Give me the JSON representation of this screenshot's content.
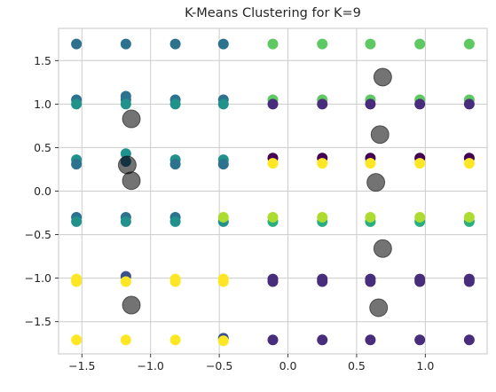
{
  "chart_data": {
    "type": "scatter",
    "title": "K-Means Clustering for K=9",
    "xlabel": "",
    "ylabel": "",
    "xlim": [
      -1.67,
      1.45
    ],
    "ylim": [
      -1.87,
      1.87
    ],
    "xticks": [
      -1.5,
      -1.0,
      -0.5,
      0.0,
      0.5,
      1.0
    ],
    "xtick_labels": [
      "−1.5",
      "−1.0",
      "−0.5",
      "0.0",
      "0.5",
      "1.0"
    ],
    "yticks": [
      -1.5,
      -1.0,
      -0.5,
      0.0,
      0.5,
      1.0,
      1.5
    ],
    "ytick_labels": [
      "−1.5",
      "−1.0",
      "−0.5",
      "0.0",
      "0.5",
      "1.0",
      "1.5"
    ],
    "grid": true,
    "legend": "none",
    "colormap": "viridis",
    "cluster_colors": {
      "0": "#440154",
      "1": "#472d7b",
      "2": "#3b528b",
      "3": "#2c728e",
      "4": "#21918c",
      "5": "#28ae80",
      "6": "#5ec962",
      "7": "#addc30",
      "8": "#fde725"
    },
    "points": [
      {
        "x": -1.54,
        "y": 1.69,
        "c": 3
      },
      {
        "x": -1.18,
        "y": 1.69,
        "c": 3
      },
      {
        "x": -0.82,
        "y": 1.69,
        "c": 3
      },
      {
        "x": -0.47,
        "y": 1.69,
        "c": 3
      },
      {
        "x": -0.11,
        "y": 1.69,
        "c": 6
      },
      {
        "x": 0.25,
        "y": 1.69,
        "c": 6
      },
      {
        "x": 0.6,
        "y": 1.69,
        "c": 6
      },
      {
        "x": 0.96,
        "y": 1.69,
        "c": 6
      },
      {
        "x": 1.32,
        "y": 1.69,
        "c": 6
      },
      {
        "x": -1.54,
        "y": 1.05,
        "c": 3
      },
      {
        "x": -1.54,
        "y": 1.0,
        "c": 4
      },
      {
        "x": -1.18,
        "y": 1.09,
        "c": 3
      },
      {
        "x": -1.18,
        "y": 1.05,
        "c": 3
      },
      {
        "x": -1.18,
        "y": 1.0,
        "c": 4
      },
      {
        "x": -0.82,
        "y": 1.05,
        "c": 3
      },
      {
        "x": -0.82,
        "y": 1.0,
        "c": 4
      },
      {
        "x": -0.47,
        "y": 1.05,
        "c": 3
      },
      {
        "x": -0.47,
        "y": 1.0,
        "c": 4
      },
      {
        "x": -0.11,
        "y": 1.05,
        "c": 6
      },
      {
        "x": -0.11,
        "y": 1.0,
        "c": 1
      },
      {
        "x": 0.25,
        "y": 1.05,
        "c": 6
      },
      {
        "x": 0.25,
        "y": 1.0,
        "c": 1
      },
      {
        "x": 0.6,
        "y": 1.05,
        "c": 6
      },
      {
        "x": 0.6,
        "y": 1.0,
        "c": 1
      },
      {
        "x": 0.96,
        "y": 1.05,
        "c": 6
      },
      {
        "x": 0.96,
        "y": 1.0,
        "c": 1
      },
      {
        "x": 1.32,
        "y": 1.05,
        "c": 6
      },
      {
        "x": 1.32,
        "y": 1.0,
        "c": 1
      },
      {
        "x": -1.54,
        "y": 0.36,
        "c": 4
      },
      {
        "x": -1.54,
        "y": 0.31,
        "c": 3
      },
      {
        "x": -1.18,
        "y": 0.43,
        "c": 4
      },
      {
        "x": -1.18,
        "y": 0.34,
        "c": 3
      },
      {
        "x": -0.82,
        "y": 0.36,
        "c": 4
      },
      {
        "x": -0.82,
        "y": 0.31,
        "c": 3
      },
      {
        "x": -0.47,
        "y": 0.36,
        "c": 4
      },
      {
        "x": -0.47,
        "y": 0.31,
        "c": 3
      },
      {
        "x": -0.11,
        "y": 0.38,
        "c": 0
      },
      {
        "x": -0.11,
        "y": 0.32,
        "c": 8
      },
      {
        "x": 0.25,
        "y": 0.38,
        "c": 0
      },
      {
        "x": 0.25,
        "y": 0.32,
        "c": 8
      },
      {
        "x": 0.6,
        "y": 0.38,
        "c": 0
      },
      {
        "x": 0.6,
        "y": 0.32,
        "c": 8
      },
      {
        "x": 0.96,
        "y": 0.38,
        "c": 0
      },
      {
        "x": 0.96,
        "y": 0.32,
        "c": 8
      },
      {
        "x": 1.32,
        "y": 0.38,
        "c": 0
      },
      {
        "x": 1.32,
        "y": 0.32,
        "c": 8
      },
      {
        "x": -1.54,
        "y": -0.3,
        "c": 3
      },
      {
        "x": -1.54,
        "y": -0.35,
        "c": 4
      },
      {
        "x": -1.18,
        "y": -0.3,
        "c": 3
      },
      {
        "x": -1.18,
        "y": -0.35,
        "c": 4
      },
      {
        "x": -0.82,
        "y": -0.3,
        "c": 3
      },
      {
        "x": -0.82,
        "y": -0.35,
        "c": 4
      },
      {
        "x": -0.47,
        "y": -0.35,
        "c": 4
      },
      {
        "x": -0.47,
        "y": -0.3,
        "c": 7
      },
      {
        "x": -0.11,
        "y": -0.35,
        "c": 5
      },
      {
        "x": -0.11,
        "y": -0.3,
        "c": 7
      },
      {
        "x": 0.25,
        "y": -0.35,
        "c": 5
      },
      {
        "x": 0.25,
        "y": -0.3,
        "c": 7
      },
      {
        "x": 0.6,
        "y": -0.35,
        "c": 5
      },
      {
        "x": 0.6,
        "y": -0.3,
        "c": 7
      },
      {
        "x": 0.96,
        "y": -0.35,
        "c": 5
      },
      {
        "x": 0.96,
        "y": -0.3,
        "c": 7
      },
      {
        "x": 1.32,
        "y": -0.35,
        "c": 5
      },
      {
        "x": 1.32,
        "y": -0.3,
        "c": 7
      },
      {
        "x": -1.54,
        "y": -1.01,
        "c": 8
      },
      {
        "x": -1.54,
        "y": -1.04,
        "c": 8
      },
      {
        "x": -1.18,
        "y": -0.98,
        "c": 2
      },
      {
        "x": -1.18,
        "y": -1.04,
        "c": 8
      },
      {
        "x": -0.82,
        "y": -1.01,
        "c": 8
      },
      {
        "x": -0.82,
        "y": -1.04,
        "c": 8
      },
      {
        "x": -0.47,
        "y": -1.01,
        "c": 8
      },
      {
        "x": -0.47,
        "y": -1.04,
        "c": 8
      },
      {
        "x": -0.11,
        "y": -1.01,
        "c": 1
      },
      {
        "x": -0.11,
        "y": -1.04,
        "c": 1
      },
      {
        "x": 0.25,
        "y": -1.01,
        "c": 1
      },
      {
        "x": 0.25,
        "y": -1.04,
        "c": 1
      },
      {
        "x": 0.6,
        "y": -1.01,
        "c": 1
      },
      {
        "x": 0.6,
        "y": -1.04,
        "c": 1
      },
      {
        "x": 0.96,
        "y": -1.01,
        "c": 1
      },
      {
        "x": 0.96,
        "y": -1.04,
        "c": 1
      },
      {
        "x": 1.32,
        "y": -1.01,
        "c": 1
      },
      {
        "x": 1.32,
        "y": -1.04,
        "c": 1
      },
      {
        "x": -1.54,
        "y": -1.71,
        "c": 8
      },
      {
        "x": -1.18,
        "y": -1.71,
        "c": 8
      },
      {
        "x": -0.82,
        "y": -1.71,
        "c": 8
      },
      {
        "x": -0.47,
        "y": -1.69,
        "c": 2
      },
      {
        "x": -0.47,
        "y": -1.72,
        "c": 8
      },
      {
        "x": -0.11,
        "y": -1.71,
        "c": 1
      },
      {
        "x": 0.25,
        "y": -1.71,
        "c": 1
      },
      {
        "x": 0.6,
        "y": -1.71,
        "c": 1
      },
      {
        "x": 0.96,
        "y": -1.71,
        "c": 1
      },
      {
        "x": 1.32,
        "y": -1.71,
        "c": 1
      }
    ],
    "centroids": [
      {
        "x": 0.69,
        "y": 1.31
      },
      {
        "x": -1.14,
        "y": 0.83
      },
      {
        "x": 0.67,
        "y": 0.65
      },
      {
        "x": -1.17,
        "y": 0.3
      },
      {
        "x": -1.14,
        "y": 0.12
      },
      {
        "x": 0.64,
        "y": 0.1
      },
      {
        "x": 0.69,
        "y": -0.66
      },
      {
        "x": -1.14,
        "y": -1.31
      },
      {
        "x": 0.66,
        "y": -1.34
      }
    ]
  }
}
